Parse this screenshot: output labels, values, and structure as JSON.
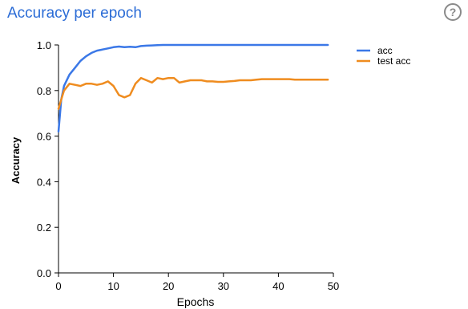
{
  "header": {
    "title": "Accuracy per epoch",
    "help_icon": "help-circle-icon",
    "help_glyph": "?"
  },
  "colors": {
    "acc": "#3b78e7",
    "test_acc": "#ef8c1f",
    "title": "#2b6cd6"
  },
  "chart_data": {
    "type": "line",
    "title": "Accuracy per epoch",
    "xlabel": "Epochs",
    "ylabel": "Accuracy",
    "xlim": [
      0,
      50
    ],
    "ylim": [
      0,
      1
    ],
    "xticks": [
      0,
      10,
      20,
      30,
      40,
      50
    ],
    "yticks": [
      0.0,
      0.2,
      0.4,
      0.6,
      0.8,
      1.0
    ],
    "ytick_labels": [
      "0.0",
      "0.2",
      "0.4",
      "0.6",
      "0.8",
      "1.0"
    ],
    "grid": false,
    "legend_position": "right",
    "series": [
      {
        "name": "acc",
        "color": "#3b78e7",
        "x": [
          0,
          0.5,
          1,
          2,
          3,
          4,
          5,
          6,
          7,
          8,
          9,
          10,
          11,
          12,
          13,
          14,
          15,
          16,
          17,
          18,
          19,
          20,
          21,
          22,
          23,
          24,
          25,
          26,
          27,
          28,
          29,
          30,
          31,
          32,
          33,
          34,
          35,
          36,
          37,
          38,
          39,
          40,
          41,
          42,
          43,
          44,
          45,
          46,
          47,
          48,
          49
        ],
        "y": [
          0.62,
          0.76,
          0.82,
          0.87,
          0.9,
          0.93,
          0.95,
          0.965,
          0.975,
          0.98,
          0.985,
          0.99,
          0.993,
          0.99,
          0.992,
          0.99,
          0.995,
          0.997,
          0.998,
          0.999,
          1.0,
          1.0,
          1.0,
          1.0,
          1.0,
          1.0,
          1.0,
          1.0,
          1.0,
          1.0,
          1.0,
          1.0,
          1.0,
          1.0,
          1.0,
          1.0,
          1.0,
          1.0,
          1.0,
          1.0,
          1.0,
          1.0,
          1.0,
          1.0,
          1.0,
          1.0,
          1.0,
          1.0,
          1.0,
          1.0,
          1.0
        ]
      },
      {
        "name": "test acc",
        "color": "#ef8c1f",
        "x": [
          0,
          0.5,
          1,
          2,
          3,
          4,
          5,
          6,
          7,
          8,
          9,
          10,
          11,
          12,
          13,
          14,
          15,
          16,
          17,
          18,
          19,
          20,
          21,
          22,
          23,
          24,
          25,
          26,
          27,
          28,
          29,
          30,
          31,
          32,
          33,
          34,
          35,
          36,
          37,
          38,
          39,
          40,
          41,
          42,
          43,
          44,
          45,
          46,
          47,
          48,
          49
        ],
        "y": [
          0.72,
          0.76,
          0.8,
          0.83,
          0.825,
          0.82,
          0.83,
          0.83,
          0.825,
          0.83,
          0.84,
          0.82,
          0.78,
          0.77,
          0.78,
          0.83,
          0.855,
          0.845,
          0.835,
          0.855,
          0.85,
          0.855,
          0.855,
          0.835,
          0.84,
          0.845,
          0.845,
          0.845,
          0.84,
          0.84,
          0.838,
          0.838,
          0.84,
          0.842,
          0.845,
          0.845,
          0.845,
          0.848,
          0.85,
          0.85,
          0.85,
          0.85,
          0.85,
          0.85,
          0.848,
          0.848,
          0.848,
          0.848,
          0.848,
          0.848,
          0.848
        ]
      }
    ]
  }
}
